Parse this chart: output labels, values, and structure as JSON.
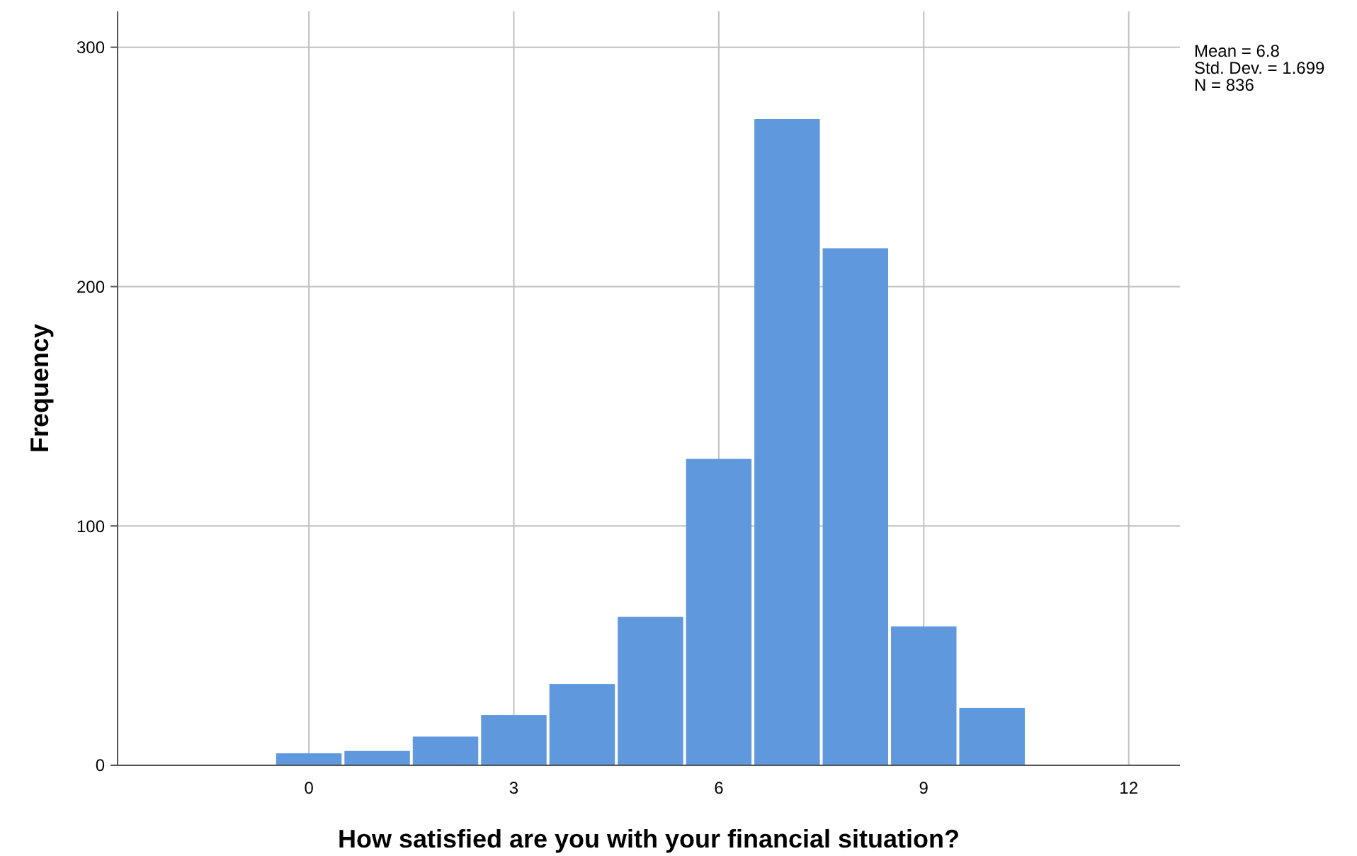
{
  "chart_data": {
    "type": "histogram",
    "xlabel": "How satisfied are you with your financial situation?",
    "ylabel": "Frequency",
    "bins": [
      -0.5,
      0.5,
      1.5,
      2.5,
      3.5,
      4.5,
      5.5,
      6.5,
      7.5,
      8.5,
      9.5,
      10.5
    ],
    "values": [
      5,
      6,
      12,
      21,
      34,
      62,
      128,
      270,
      216,
      58,
      24
    ],
    "color": "#6098dd",
    "xlim": [
      -2.8,
      12.75
    ],
    "xticks": [
      0,
      3,
      6,
      9,
      12
    ],
    "ylim": [
      0,
      315
    ],
    "yticks": [
      0,
      100,
      200,
      300
    ],
    "grid": true,
    "annotations": [
      "Mean = 6.8",
      "Std. Dev. = 1.699",
      "N = 836"
    ]
  }
}
